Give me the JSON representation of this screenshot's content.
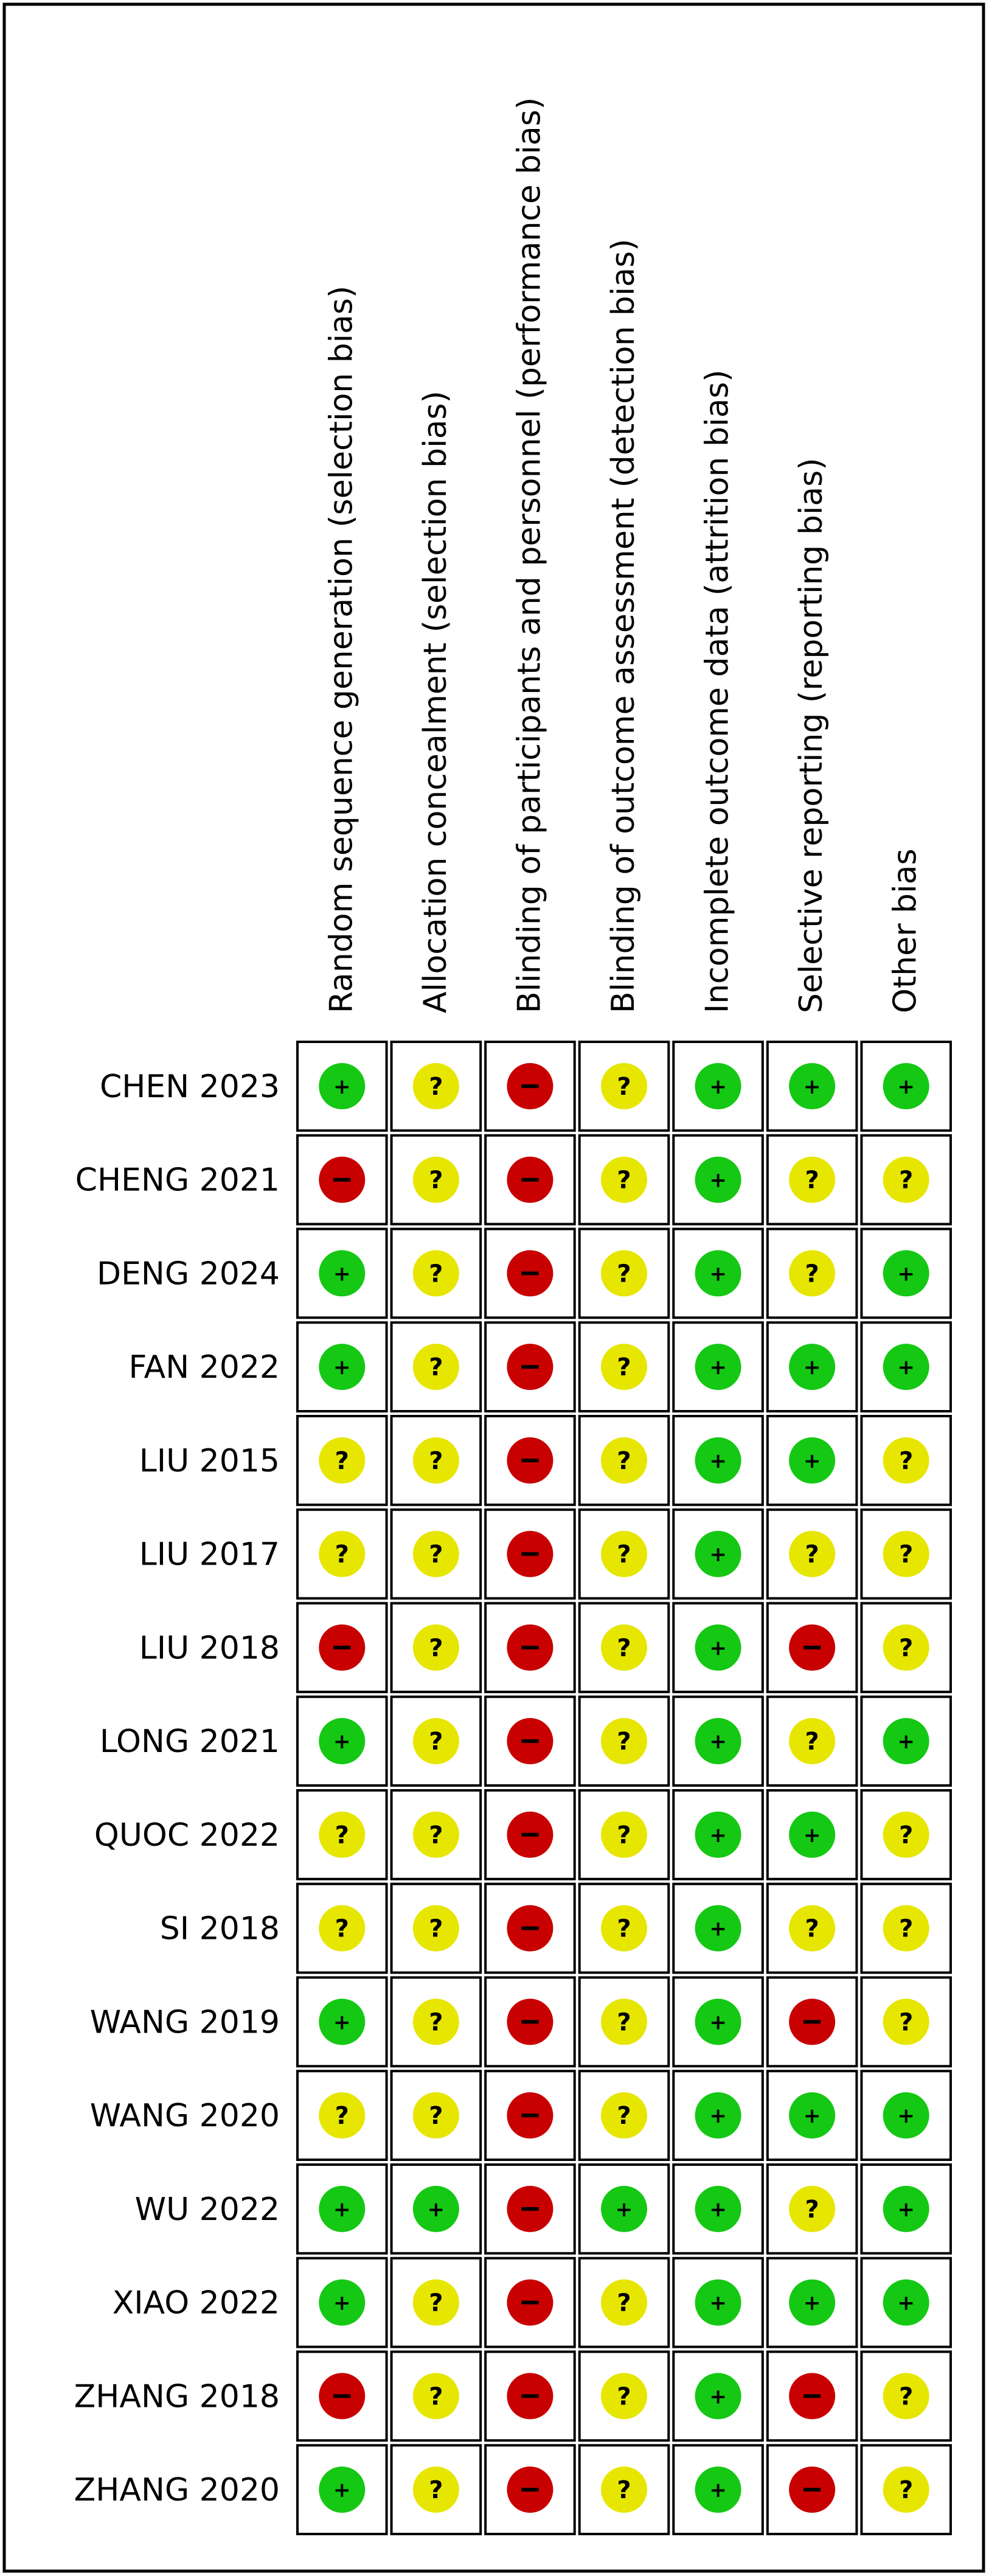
{
  "chart_data": {
    "type": "table",
    "columns": [
      "Random sequence generation (selection bias)",
      "Allocation concealment (selection bias)",
      "Blinding of participants and personnel (performance bias)",
      "Blinding of outcome assessment (detection bias)",
      "Incomplete outcome data (attrition bias)",
      "Selective reporting (reporting bias)",
      "Other bias"
    ],
    "rows": [
      "CHEN 2023",
      "CHENG 2021",
      "DENG 2024",
      "FAN 2022",
      "LIU 2015",
      "LIU 2017",
      "LIU 2018",
      "LONG 2021",
      "QUOC 2022",
      "SI 2018",
      "WANG 2019",
      "WANG 2020",
      "WU 2022",
      "XIAO 2022",
      "ZHANG 2018",
      "ZHANG 2020"
    ],
    "values": [
      [
        "low",
        "unclear",
        "high",
        "unclear",
        "low",
        "low",
        "low"
      ],
      [
        "high",
        "unclear",
        "high",
        "unclear",
        "low",
        "unclear",
        "unclear"
      ],
      [
        "low",
        "unclear",
        "high",
        "unclear",
        "low",
        "unclear",
        "low"
      ],
      [
        "low",
        "unclear",
        "high",
        "unclear",
        "low",
        "low",
        "low"
      ],
      [
        "unclear",
        "unclear",
        "high",
        "unclear",
        "low",
        "low",
        "unclear"
      ],
      [
        "unclear",
        "unclear",
        "high",
        "unclear",
        "low",
        "unclear",
        "unclear"
      ],
      [
        "high",
        "unclear",
        "high",
        "unclear",
        "low",
        "high",
        "unclear"
      ],
      [
        "low",
        "unclear",
        "high",
        "unclear",
        "low",
        "unclear",
        "low"
      ],
      [
        "unclear",
        "unclear",
        "high",
        "unclear",
        "low",
        "low",
        "unclear"
      ],
      [
        "unclear",
        "unclear",
        "high",
        "unclear",
        "low",
        "unclear",
        "unclear"
      ],
      [
        "low",
        "unclear",
        "high",
        "unclear",
        "low",
        "high",
        "unclear"
      ],
      [
        "unclear",
        "unclear",
        "high",
        "unclear",
        "low",
        "low",
        "low"
      ],
      [
        "low",
        "low",
        "high",
        "low",
        "low",
        "unclear",
        "low"
      ],
      [
        "low",
        "unclear",
        "high",
        "unclear",
        "low",
        "low",
        "low"
      ],
      [
        "high",
        "unclear",
        "high",
        "unclear",
        "low",
        "high",
        "unclear"
      ],
      [
        "low",
        "unclear",
        "high",
        "unclear",
        "low",
        "high",
        "unclear"
      ]
    ],
    "legend": {
      "low": {
        "symbol": "+",
        "color": "#14c814",
        "icon": "plus-icon"
      },
      "unclear": {
        "symbol": "?",
        "color": "#e6e600",
        "icon": "question-icon"
      },
      "high": {
        "symbol": "−",
        "color": "#c80000",
        "icon": "minus-icon"
      }
    }
  }
}
